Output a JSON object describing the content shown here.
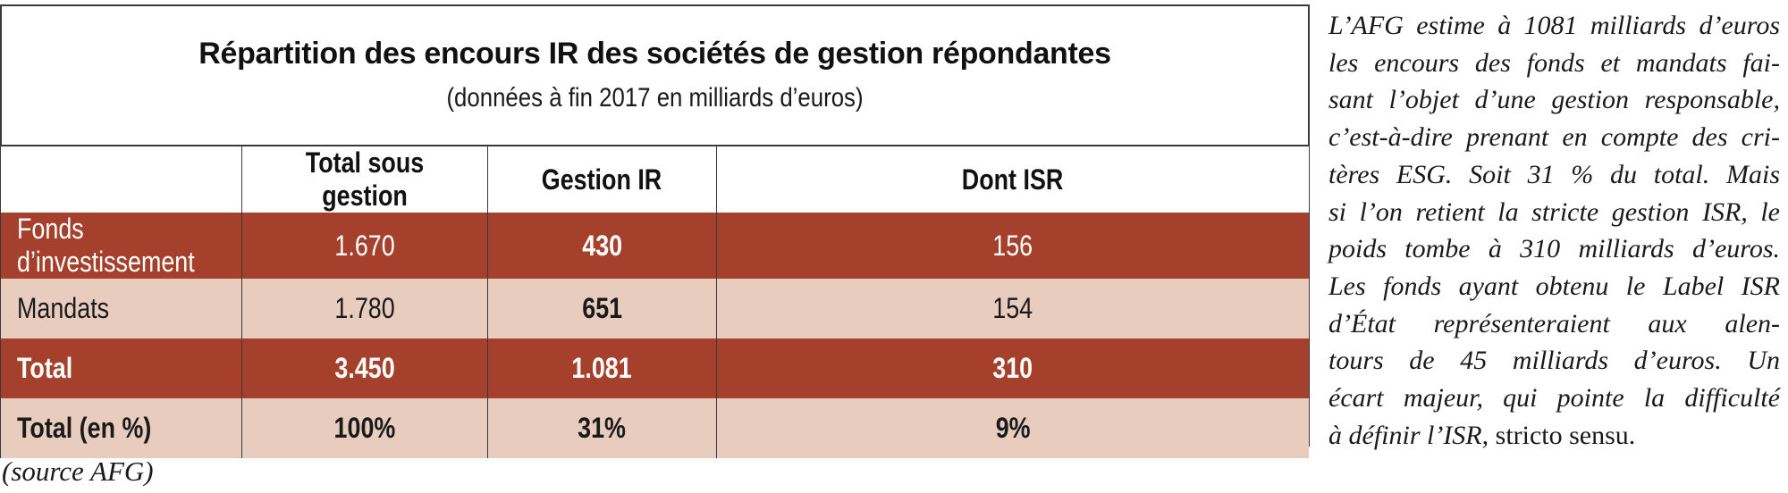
{
  "table_title": "Répartition des encours IR des sociétés de gestion répondantes",
  "table_subtitle": "(données à fin 2017 en milliards d’euros)",
  "columns": [
    "",
    "Total sous gestion",
    "Gestion IR",
    "Dont ISR"
  ],
  "rows": [
    {
      "label": "Fonds d’investissement",
      "values": [
        "1.670",
        "430",
        "156"
      ],
      "style": "dark"
    },
    {
      "label": "Mandats",
      "values": [
        "1.780",
        "651",
        "154"
      ],
      "style": "light"
    },
    {
      "label": "Total",
      "values": [
        "3.450",
        "1.081",
        "310"
      ],
      "style": "dark"
    },
    {
      "label": "Total (en %)",
      "values": [
        "100%",
        "31%",
        "9%"
      ],
      "style": "light"
    }
  ],
  "source_note": "(source AFG)",
  "side_paragraph": {
    "lines": [
      "L’AFG estime à 1081 milliards d’euros",
      "les encours des fonds et mandats fai-",
      "sant l’objet d’une gestion responsable,",
      "c’est-à-dire prenant en compte des cri-",
      "tères ESG. Soit 31 % du total. Mais",
      "si l’on retient la stricte gestion ISR, le",
      "poids tombe à 310 milliards d’euros.",
      "Les fonds ayant obtenu le Label ISR",
      "d’État représenteraient aux alen-",
      "tours de 45 milliards d’euros. Un",
      "écart majeur, qui pointe la difficulté",
      "à définir l’ISR,"
    ],
    "last_line_tail": "stricto sensu."
  },
  "colors": {
    "dark_row": "#a5402c",
    "light_row": "#e8cdbf",
    "border": "#3a3a3a"
  }
}
